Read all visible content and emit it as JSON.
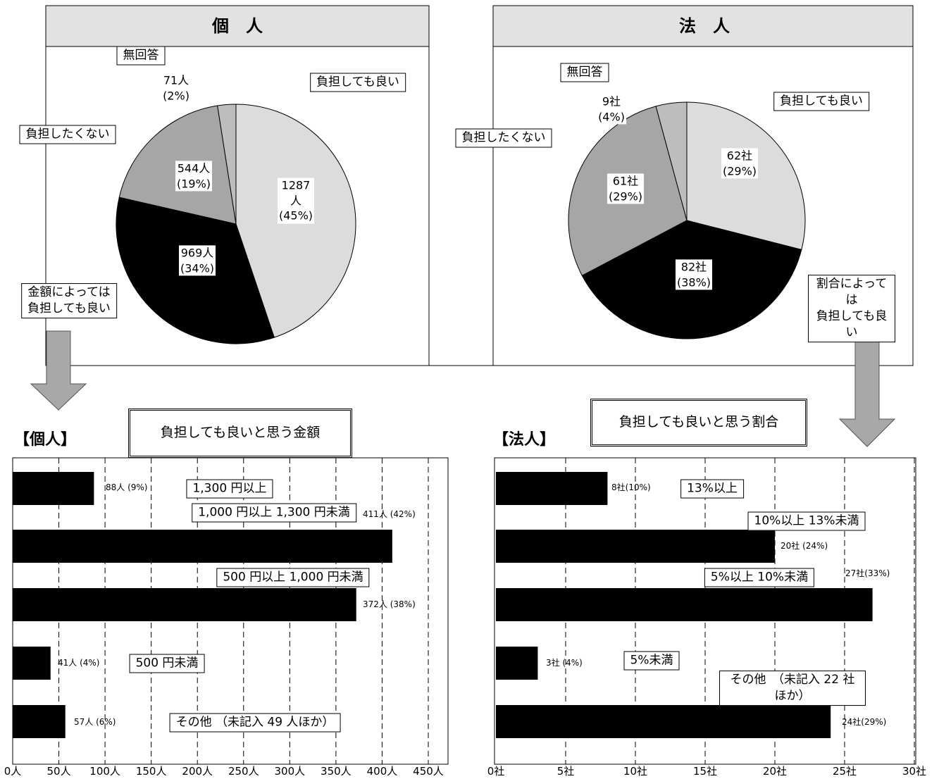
{
  "chart_data": [
    {
      "type": "pie",
      "title": "個　人",
      "categories": [
        "負担しても良い",
        "金額によっては\n負担しても良い",
        "負担したくない",
        "無回答"
      ],
      "values": [
        1287,
        969,
        544,
        71
      ],
      "value_labels": [
        "1287\n人\n(45%)",
        "969人\n(34%)",
        "544人\n(19%)",
        "71人\n(2%)"
      ],
      "colors": [
        "#dcdcdc",
        "#000000",
        "#a6a6a6",
        "#bdbdbd"
      ]
    },
    {
      "type": "pie",
      "title": "法　人",
      "categories": [
        "負担しても良い",
        "割合によっては\n負担しても良い",
        "負担したくない",
        "無回答"
      ],
      "values": [
        62,
        82,
        61,
        9
      ],
      "value_labels": [
        "62社\n(29%)",
        "82社\n(38%)",
        "61社\n(29%)",
        "9社\n(4%)"
      ],
      "colors": [
        "#dcdcdc",
        "#000000",
        "#a6a6a6",
        "#bdbdbd"
      ]
    },
    {
      "type": "bar",
      "orientation": "horizontal",
      "title": "負担しても良いと思う金額",
      "subtitle": "【個人】",
      "categories": [
        "1,300 円以上",
        "1,000 円以上 1,300 円未満",
        "500 円以上 1,000 円未満",
        "500 円未満",
        "その他 （未記入 49 人ほか）"
      ],
      "values": [
        88,
        411,
        372,
        41,
        57
      ],
      "value_labels": [
        "88人 (9%)",
        "411人 (42%)",
        "372人 (38%)",
        "41人 (4%)",
        "57人 (6%)"
      ],
      "color": "#000000",
      "grid": true,
      "xlim": [
        0,
        450
      ],
      "xticks": [
        {
          "value": 0,
          "label": "0人"
        },
        {
          "value": 50,
          "label": "50人"
        },
        {
          "value": 100,
          "label": "100人"
        },
        {
          "value": 150,
          "label": "150人"
        },
        {
          "value": 200,
          "label": "200人"
        },
        {
          "value": 250,
          "label": "250人"
        },
        {
          "value": 300,
          "label": "300人"
        },
        {
          "value": 350,
          "label": "350人"
        },
        {
          "value": 400,
          "label": "400人"
        },
        {
          "value": 450,
          "label": "450人"
        }
      ]
    },
    {
      "type": "bar",
      "orientation": "horizontal",
      "title": "負担しても良いと思う割合",
      "subtitle": "【法人】",
      "categories": [
        "13%以上",
        "10%以上 13%未満",
        "5%以上 10%未満",
        "5%未満",
        "その他　（未記入 22 社ほか）"
      ],
      "values": [
        8,
        20,
        27,
        3,
        24
      ],
      "value_labels": [
        "8社(10%)",
        "20社 (24%)",
        "27社(33%)",
        "3社 (4%)",
        "24社(29%)"
      ],
      "color": "#000000",
      "grid": true,
      "xlim": [
        0,
        30
      ],
      "xticks": [
        {
          "value": 0,
          "label": "0社"
        },
        {
          "value": 5,
          "label": "5社"
        },
        {
          "value": 10,
          "label": "10社"
        },
        {
          "value": 15,
          "label": "15社"
        },
        {
          "value": 20,
          "label": "20社"
        },
        {
          "value": 25,
          "label": "25社"
        },
        {
          "value": 30,
          "label": "30社"
        }
      ]
    }
  ]
}
